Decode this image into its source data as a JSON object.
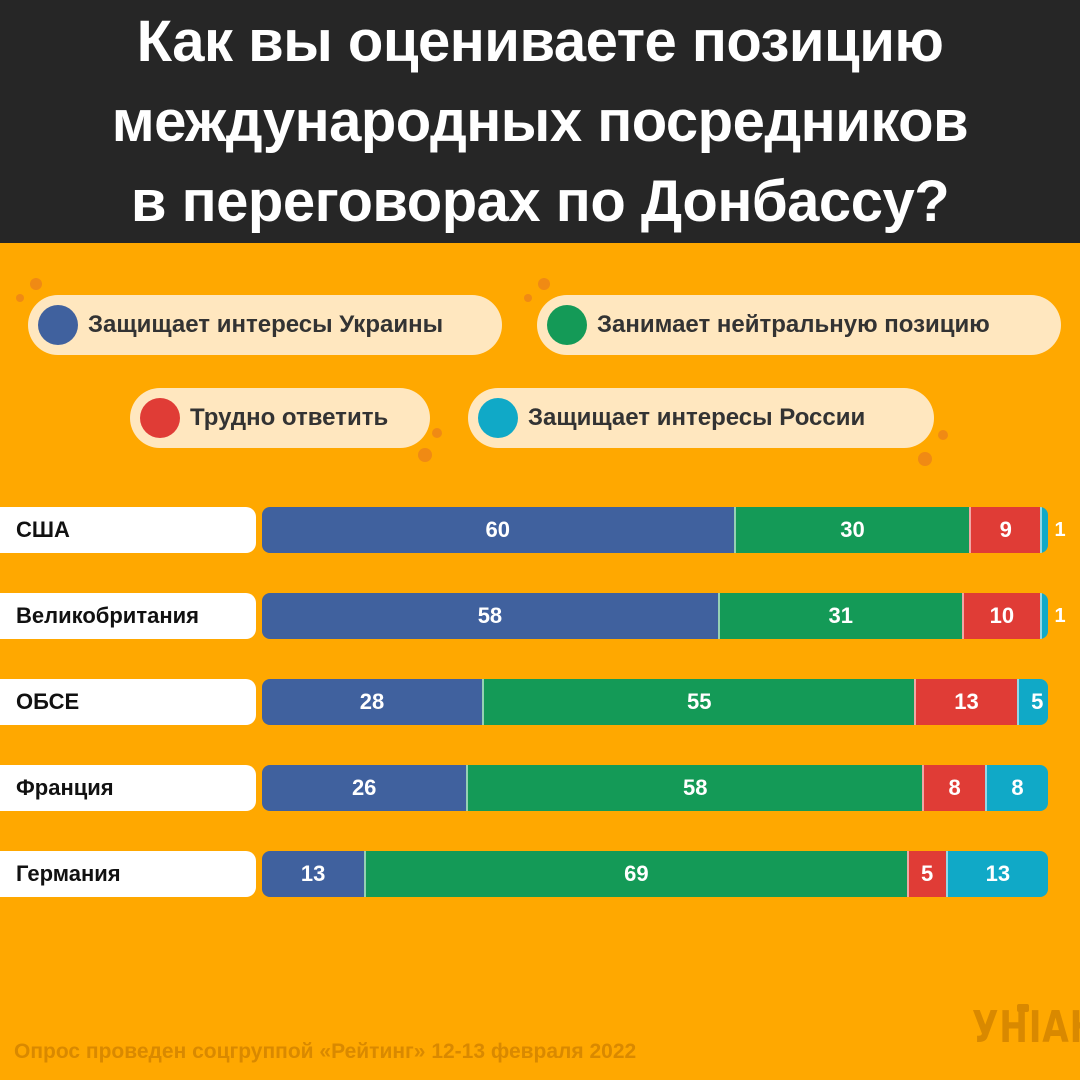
{
  "title_lines": [
    "Как вы оцениваете позицию",
    "международных посредников",
    "в переговорах по Донбассу?"
  ],
  "legend": [
    {
      "label": "Защищает интересы Украины",
      "color": "#40619E"
    },
    {
      "label": "Занимает нейтральную позицию",
      "color": "#149A57"
    },
    {
      "label": "Трудно ответить",
      "color": "#E03C36"
    },
    {
      "label": "Защищает интересы России",
      "color": "#10A9C7"
    }
  ],
  "chart_data": {
    "type": "bar",
    "stacked": true,
    "orientation": "horizontal",
    "categories": [
      "США",
      "Великобритания",
      "ОБСЕ",
      "Франция",
      "Германия"
    ],
    "series": [
      {
        "name": "Защищает интересы Украины",
        "values": [
          60,
          58,
          28,
          26,
          13
        ],
        "color": "#40619E"
      },
      {
        "name": "Занимает нейтральную позицию",
        "values": [
          30,
          31,
          55,
          58,
          69
        ],
        "color": "#149A57"
      },
      {
        "name": "Трудно ответить",
        "values": [
          9,
          10,
          13,
          8,
          5
        ],
        "color": "#E03C36"
      },
      {
        "name": "Защищает интересы России",
        "values": [
          1,
          1,
          5,
          8,
          13
        ],
        "color": "#10A9C7"
      }
    ],
    "xlim": [
      0,
      100
    ]
  },
  "footer": "Опрос проведен соцгруппой «Рейтинг» 12-13 февраля 2022",
  "logo": "УНІАН"
}
